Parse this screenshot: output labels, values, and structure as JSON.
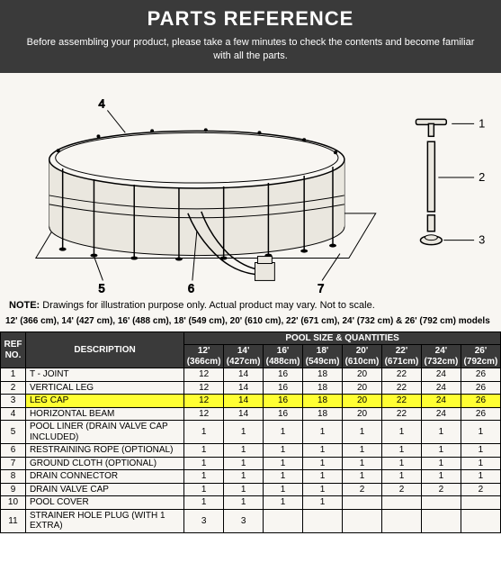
{
  "header": {
    "title": "PARTS REFERENCE",
    "subtitle": "Before assembling your product, please take a few minutes to check the contents and become familiar with all the parts."
  },
  "diagram": {
    "callouts": [
      "1",
      "2",
      "3",
      "4",
      "5",
      "6",
      "7"
    ],
    "note_label": "NOTE:",
    "note_text": " Drawings for illustration purpose only. Actual product may vary. Not to scale."
  },
  "models_line": "12' (366 cm), 14' (427 cm), 16' (488 cm), 18' (549 cm), 20' (610 cm), 22' (671 cm), 24' (732 cm) & 26' (792 cm) models",
  "table": {
    "type": "table",
    "headers": {
      "ref": "REF NO.",
      "description": "DESCRIPTION",
      "pool_group": "POOL SIZE & QUANTITIES",
      "sizes": [
        {
          "ft": "12'",
          "cm": "(366cm)"
        },
        {
          "ft": "14'",
          "cm": "(427cm)"
        },
        {
          "ft": "16'",
          "cm": "(488cm)"
        },
        {
          "ft": "18'",
          "cm": "(549cm)"
        },
        {
          "ft": "20'",
          "cm": "(610cm)"
        },
        {
          "ft": "22'",
          "cm": "(671cm)"
        },
        {
          "ft": "24'",
          "cm": "(732cm)"
        },
        {
          "ft": "26'",
          "cm": "(792cm)"
        }
      ]
    },
    "rows": [
      {
        "ref": "1",
        "desc": "T - JOINT",
        "q": [
          "12",
          "14",
          "16",
          "18",
          "20",
          "22",
          "24",
          "26"
        ],
        "hl": false
      },
      {
        "ref": "2",
        "desc": "VERTICAL LEG",
        "q": [
          "12",
          "14",
          "16",
          "18",
          "20",
          "22",
          "24",
          "26"
        ],
        "hl": false
      },
      {
        "ref": "3",
        "desc": "LEG CAP",
        "q": [
          "12",
          "14",
          "16",
          "18",
          "20",
          "22",
          "24",
          "26"
        ],
        "hl": true
      },
      {
        "ref": "4",
        "desc": "HORIZONTAL BEAM",
        "q": [
          "12",
          "14",
          "16",
          "18",
          "20",
          "22",
          "24",
          "26"
        ],
        "hl": false
      },
      {
        "ref": "5",
        "desc": "POOL LINER (DRAIN VALVE CAP INCLUDED)",
        "q": [
          "1",
          "1",
          "1",
          "1",
          "1",
          "1",
          "1",
          "1"
        ],
        "hl": false
      },
      {
        "ref": "6",
        "desc": "RESTRAINING ROPE (OPTIONAL)",
        "q": [
          "1",
          "1",
          "1",
          "1",
          "1",
          "1",
          "1",
          "1"
        ],
        "hl": false
      },
      {
        "ref": "7",
        "desc": "GROUND CLOTH (OPTIONAL)",
        "q": [
          "1",
          "1",
          "1",
          "1",
          "1",
          "1",
          "1",
          "1"
        ],
        "hl": false
      },
      {
        "ref": "8",
        "desc": "DRAIN CONNECTOR",
        "q": [
          "1",
          "1",
          "1",
          "1",
          "1",
          "1",
          "1",
          "1"
        ],
        "hl": false
      },
      {
        "ref": "9",
        "desc": "DRAIN VALVE CAP",
        "q": [
          "1",
          "1",
          "1",
          "1",
          "2",
          "2",
          "2",
          "2"
        ],
        "hl": false
      },
      {
        "ref": "10",
        "desc": "POOL COVER",
        "q": [
          "1",
          "1",
          "1",
          "1",
          "",
          "",
          "",
          ""
        ],
        "hl": false
      },
      {
        "ref": "11",
        "desc": "STRAINER HOLE PLUG (WITH 1 EXTRA)",
        "q": [
          "3",
          "3",
          "",
          "",
          "",
          "",
          "",
          ""
        ],
        "hl": false
      }
    ],
    "highlight_color": "#ffff33",
    "header_bg": "#3a3a3a",
    "header_fg": "#ffffff",
    "border_color": "#000000",
    "cell_bg": "#f8f6f2",
    "font_size_pt": 8
  },
  "colors": {
    "page_bg": "#f8f6f2",
    "header_bg": "#3a3a3a",
    "text": "#000000"
  }
}
